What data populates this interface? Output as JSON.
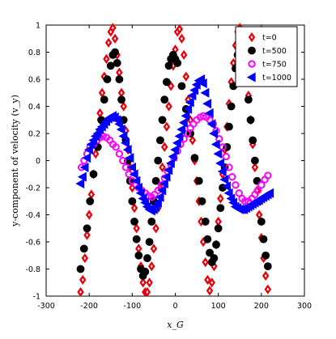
{
  "chart_data": {
    "type": "scatter",
    "title": "",
    "xlabel": "x_G",
    "ylabel": "y-component of velocity (v_y)",
    "xlim": [
      -300,
      300
    ],
    "ylim": [
      -1,
      1
    ],
    "x_ticks": [
      -300,
      -200,
      -100,
      0,
      100,
      200,
      300
    ],
    "y_ticks": [
      -1,
      -0.8,
      -0.6,
      -0.4,
      -0.2,
      0,
      0.2,
      0.4,
      0.6,
      0.8,
      1
    ],
    "grid": false,
    "legend_position": "top-right",
    "series": [
      {
        "name": "t=0",
        "marker": "diamond",
        "color": "#e8000b",
        "points": [
          [
            -220,
            -0.97
          ],
          [
            -215,
            -0.88
          ],
          [
            -210,
            -0.72
          ],
          [
            -205,
            -0.55
          ],
          [
            -200,
            -0.4
          ],
          [
            -195,
            -0.25
          ],
          [
            -190,
            -0.1
          ],
          [
            -185,
            0.05
          ],
          [
            -180,
            0.2
          ],
          [
            -175,
            0.35
          ],
          [
            -170,
            0.5
          ],
          [
            -165,
            0.62
          ],
          [
            -160,
            0.75
          ],
          [
            -155,
            0.87
          ],
          [
            -150,
            0.95
          ],
          [
            -145,
            0.98
          ],
          [
            -140,
            0.9
          ],
          [
            -135,
            0.78
          ],
          [
            -130,
            0.65
          ],
          [
            -125,
            0.5
          ],
          [
            -120,
            0.4
          ],
          [
            -115,
            0.22
          ],
          [
            -110,
            0.08
          ],
          [
            -105,
            -0.05
          ],
          [
            -100,
            -0.2
          ],
          [
            -95,
            -0.35
          ],
          [
            -90,
            -0.5
          ],
          [
            -85,
            -0.65
          ],
          [
            -80,
            -0.78
          ],
          [
            -75,
            -0.9
          ],
          [
            -70,
            -0.97
          ],
          [
            -65,
            -0.97
          ],
          [
            -60,
            -0.9
          ],
          [
            -55,
            -0.78
          ],
          [
            -50,
            -0.65
          ],
          [
            -45,
            -0.5
          ],
          [
            -40,
            -0.35
          ],
          [
            -35,
            -0.2
          ],
          [
            -30,
            -0.05
          ],
          [
            -25,
            0.1
          ],
          [
            -20,
            0.25
          ],
          [
            -15,
            0.4
          ],
          [
            -10,
            0.55
          ],
          [
            -5,
            0.7
          ],
          [
            0,
            0.82
          ],
          [
            5,
            0.95
          ],
          [
            10,
            0.97
          ],
          [
            15,
            0.9
          ],
          [
            20,
            0.78
          ],
          [
            25,
            0.62
          ],
          [
            30,
            0.45
          ],
          [
            35,
            0.3
          ],
          [
            40,
            0.15
          ],
          [
            45,
            0.0
          ],
          [
            50,
            -0.15
          ],
          [
            55,
            -0.3
          ],
          [
            60,
            -0.45
          ],
          [
            65,
            -0.6
          ],
          [
            70,
            -0.75
          ],
          [
            75,
            -0.88
          ],
          [
            80,
            -0.96
          ],
          [
            85,
            -0.9
          ],
          [
            90,
            -0.78
          ],
          [
            95,
            -0.62
          ],
          [
            100,
            -0.45
          ],
          [
            105,
            -0.28
          ],
          [
            110,
            -0.1
          ],
          [
            115,
            0.08
          ],
          [
            120,
            0.25
          ],
          [
            125,
            0.42
          ],
          [
            130,
            0.58
          ],
          [
            135,
            0.72
          ],
          [
            140,
            0.85
          ],
          [
            145,
            0.95
          ],
          [
            150,
            0.98
          ],
          [
            155,
            0.92
          ],
          [
            160,
            0.8
          ],
          [
            165,
            0.65
          ],
          [
            170,
            0.48
          ],
          [
            175,
            0.3
          ],
          [
            180,
            0.12
          ],
          [
            185,
            -0.05
          ],
          [
            190,
            -0.22
          ],
          [
            195,
            -0.4
          ],
          [
            200,
            -0.57
          ],
          [
            205,
            -0.72
          ],
          [
            210,
            -0.85
          ],
          [
            215,
            -0.95
          ]
        ]
      },
      {
        "name": "t=500",
        "marker": "circle",
        "color": "#000000",
        "points": [
          [
            -220,
            -0.8
          ],
          [
            -212,
            -0.65
          ],
          [
            -205,
            -0.5
          ],
          [
            -198,
            -0.3
          ],
          [
            -190,
            -0.1
          ],
          [
            -180,
            0.1
          ],
          [
            -172,
            0.3
          ],
          [
            -165,
            0.45
          ],
          [
            -158,
            0.6
          ],
          [
            -150,
            0.7
          ],
          [
            -145,
            0.78
          ],
          [
            -140,
            0.8
          ],
          [
            -135,
            0.72
          ],
          [
            -130,
            0.6
          ],
          [
            -125,
            0.45
          ],
          [
            -120,
            0.3
          ],
          [
            -115,
            0.15
          ],
          [
            -110,
            0.0
          ],
          [
            -105,
            -0.15
          ],
          [
            -100,
            -0.3
          ],
          [
            -95,
            -0.45
          ],
          [
            -90,
            -0.58
          ],
          [
            -85,
            -0.7
          ],
          [
            -80,
            -0.8
          ],
          [
            -75,
            -0.85
          ],
          [
            -70,
            -0.82
          ],
          [
            -65,
            -0.72
          ],
          [
            -60,
            -0.6
          ],
          [
            -55,
            -0.45
          ],
          [
            -50,
            -0.3
          ],
          [
            -45,
            -0.15
          ],
          [
            -40,
            0.0
          ],
          [
            -35,
            0.15
          ],
          [
            -30,
            0.3
          ],
          [
            -25,
            0.45
          ],
          [
            -20,
            0.58
          ],
          [
            -15,
            0.7
          ],
          [
            -10,
            0.75
          ],
          [
            -5,
            0.78
          ],
          [
            0,
            0.75
          ],
          [
            5,
            0.72
          ],
          [
            15,
            0.55
          ],
          [
            25,
            0.38
          ],
          [
            35,
            0.2
          ],
          [
            45,
            0.02
          ],
          [
            55,
            -0.15
          ],
          [
            62,
            -0.3
          ],
          [
            70,
            -0.45
          ],
          [
            75,
            -0.58
          ],
          [
            80,
            -0.68
          ],
          [
            85,
            -0.75
          ],
          [
            90,
            -0.72
          ],
          [
            95,
            -0.62
          ],
          [
            100,
            -0.5
          ],
          [
            105,
            -0.35
          ],
          [
            110,
            -0.2
          ],
          [
            115,
            -0.05
          ],
          [
            120,
            0.1
          ],
          [
            125,
            0.25
          ],
          [
            130,
            0.4
          ],
          [
            135,
            0.55
          ],
          [
            140,
            0.68
          ],
          [
            145,
            0.78
          ],
          [
            150,
            0.82
          ],
          [
            155,
            0.8
          ],
          [
            160,
            0.72
          ],
          [
            165,
            0.6
          ],
          [
            170,
            0.45
          ],
          [
            175,
            0.3
          ],
          [
            180,
            0.15
          ],
          [
            185,
            0.0
          ],
          [
            190,
            -0.15
          ],
          [
            195,
            -0.3
          ],
          [
            200,
            -0.45
          ],
          [
            205,
            -0.58
          ],
          [
            210,
            -0.7
          ],
          [
            215,
            -0.78
          ]
        ]
      },
      {
        "name": "t=750",
        "marker": "circle-open",
        "color": "#ff00ff",
        "points": [
          [
            -218,
            -0.05
          ],
          [
            -212,
            0.0
          ],
          [
            -205,
            0.05
          ],
          [
            -198,
            0.1
          ],
          [
            -190,
            0.12
          ],
          [
            -182,
            0.15
          ],
          [
            -175,
            0.17
          ],
          [
            -168,
            0.18
          ],
          [
            -160,
            0.17
          ],
          [
            -152,
            0.15
          ],
          [
            -145,
            0.12
          ],
          [
            -138,
            0.1
          ],
          [
            -130,
            0.05
          ],
          [
            -122,
            0.0
          ],
          [
            -115,
            -0.05
          ],
          [
            -108,
            -0.1
          ],
          [
            -100,
            -0.15
          ],
          [
            -92,
            -0.18
          ],
          [
            -85,
            -0.2
          ],
          [
            -78,
            -0.22
          ],
          [
            -70,
            -0.24
          ],
          [
            -62,
            -0.26
          ],
          [
            -55,
            -0.27
          ],
          [
            -48,
            -0.25
          ],
          [
            -40,
            -0.22
          ],
          [
            -32,
            -0.18
          ],
          [
            -25,
            -0.13
          ],
          [
            -18,
            -0.08
          ],
          [
            -10,
            -0.03
          ],
          [
            -3,
            0.02
          ],
          [
            5,
            0.07
          ],
          [
            12,
            0.12
          ],
          [
            20,
            0.16
          ],
          [
            28,
            0.2
          ],
          [
            35,
            0.24
          ],
          [
            42,
            0.27
          ],
          [
            50,
            0.3
          ],
          [
            58,
            0.32
          ],
          [
            65,
            0.33
          ],
          [
            72,
            0.32
          ],
          [
            80,
            0.3
          ],
          [
            88,
            0.27
          ],
          [
            95,
            0.22
          ],
          [
            102,
            0.16
          ],
          [
            110,
            0.1
          ],
          [
            118,
            0.03
          ],
          [
            125,
            -0.05
          ],
          [
            132,
            -0.12
          ],
          [
            140,
            -0.18
          ],
          [
            148,
            -0.24
          ],
          [
            155,
            -0.28
          ],
          [
            162,
            -0.3
          ],
          [
            170,
            -0.3
          ],
          [
            178,
            -0.28
          ],
          [
            185,
            -0.25
          ],
          [
            192,
            -0.22
          ],
          [
            200,
            -0.18
          ],
          [
            208,
            -0.14
          ],
          [
            215,
            -0.11
          ]
        ]
      },
      {
        "name": "t=1000",
        "marker": "triangle-left",
        "color": "#0000ff",
        "points": [
          [
            -220,
            -0.17
          ],
          [
            -215,
            -0.12
          ],
          [
            -210,
            -0.05
          ],
          [
            -205,
            0.02
          ],
          [
            -200,
            0.08
          ],
          [
            -195,
            0.12
          ],
          [
            -190,
            0.15
          ],
          [
            -185,
            0.18
          ],
          [
            -180,
            0.2
          ],
          [
            -175,
            0.23
          ],
          [
            -170,
            0.25
          ],
          [
            -165,
            0.27
          ],
          [
            -160,
            0.29
          ],
          [
            -155,
            0.31
          ],
          [
            -150,
            0.32
          ],
          [
            -145,
            0.33
          ],
          [
            -140,
            0.32
          ],
          [
            -135,
            0.3
          ],
          [
            -130,
            0.27
          ],
          [
            -125,
            0.23
          ],
          [
            -120,
            0.18
          ],
          [
            -115,
            0.13
          ],
          [
            -110,
            0.08
          ],
          [
            -105,
            0.02
          ],
          [
            -100,
            -0.05
          ],
          [
            -95,
            -0.1
          ],
          [
            -90,
            -0.15
          ],
          [
            -85,
            -0.2
          ],
          [
            -80,
            -0.24
          ],
          [
            -75,
            -0.28
          ],
          [
            -70,
            -0.31
          ],
          [
            -65,
            -0.34
          ],
          [
            -60,
            -0.36
          ],
          [
            -55,
            -0.37
          ],
          [
            -50,
            -0.36
          ],
          [
            -45,
            -0.34
          ],
          [
            -40,
            -0.31
          ],
          [
            -35,
            -0.27
          ],
          [
            -30,
            -0.22
          ],
          [
            -25,
            -0.17
          ],
          [
            -20,
            -0.12
          ],
          [
            -15,
            -0.07
          ],
          [
            -10,
            -0.02
          ],
          [
            -5,
            0.03
          ],
          [
            0,
            0.08
          ],
          [
            5,
            0.13
          ],
          [
            10,
            0.18
          ],
          [
            15,
            0.23
          ],
          [
            20,
            0.28
          ],
          [
            25,
            0.33
          ],
          [
            30,
            0.38
          ],
          [
            35,
            0.43
          ],
          [
            40,
            0.48
          ],
          [
            45,
            0.52
          ],
          [
            50,
            0.56
          ],
          [
            55,
            0.59
          ],
          [
            60,
            0.6
          ],
          [
            65,
            0.57
          ],
          [
            70,
            0.5
          ],
          [
            75,
            0.42
          ],
          [
            80,
            0.35
          ],
          [
            85,
            0.27
          ],
          [
            90,
            0.2
          ],
          [
            95,
            0.12
          ],
          [
            100,
            0.05
          ],
          [
            105,
            -0.02
          ],
          [
            110,
            -0.08
          ],
          [
            115,
            -0.14
          ],
          [
            120,
            -0.19
          ],
          [
            125,
            -0.24
          ],
          [
            130,
            -0.28
          ],
          [
            135,
            -0.31
          ],
          [
            140,
            -0.34
          ],
          [
            145,
            -0.35
          ],
          [
            150,
            -0.36
          ],
          [
            155,
            -0.36
          ],
          [
            160,
            -0.36
          ],
          [
            165,
            -0.35
          ],
          [
            170,
            -0.34
          ],
          [
            175,
            -0.33
          ],
          [
            180,
            -0.32
          ],
          [
            185,
            -0.31
          ],
          [
            190,
            -0.3
          ],
          [
            195,
            -0.29
          ],
          [
            200,
            -0.28
          ],
          [
            205,
            -0.27
          ],
          [
            210,
            -0.26
          ],
          [
            215,
            -0.25
          ],
          [
            220,
            -0.24
          ]
        ]
      }
    ]
  }
}
